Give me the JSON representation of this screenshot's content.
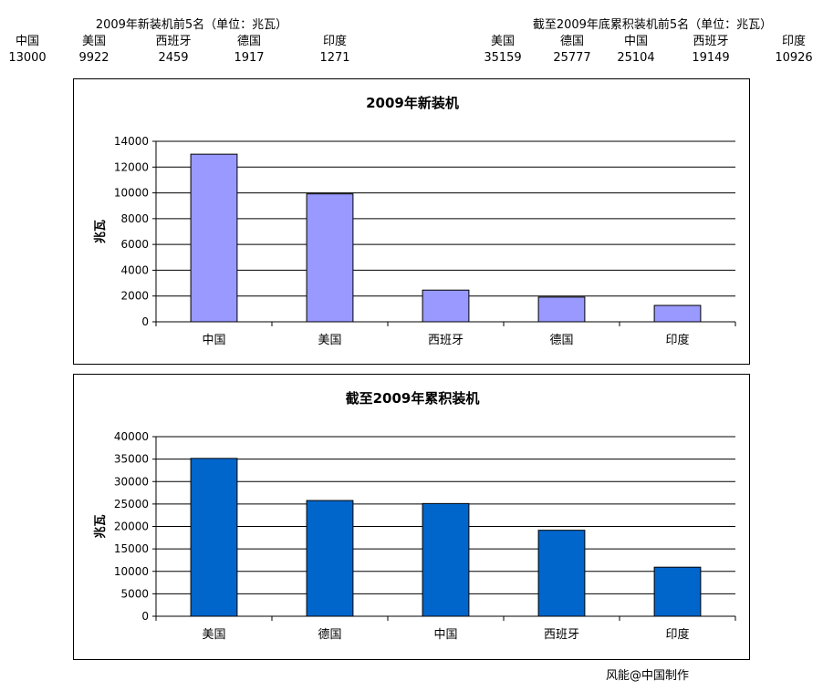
{
  "tables": [
    {
      "title": "2009年新装机前5名（单位：兆瓦）",
      "headers": [
        "中国",
        "美国",
        "西班牙",
        "德国",
        "印度"
      ],
      "values": [
        "13000",
        "9922",
        "2459",
        "1917",
        "1271"
      ]
    },
    {
      "title": "截至2009年底累积装机前5名（单位：兆瓦）",
      "headers": [
        "美国",
        "德国",
        "中国",
        "西班牙",
        "印度"
      ],
      "values": [
        "35159",
        "25777",
        "25104",
        "19149",
        "10926"
      ]
    }
  ],
  "chart_data": [
    {
      "type": "bar",
      "title": "2009年新装机",
      "ylabel": "兆瓦",
      "xlabel": "",
      "categories": [
        "中国",
        "美国",
        "西班牙",
        "德国",
        "印度"
      ],
      "values": [
        13000,
        9922,
        2459,
        1917,
        1271
      ],
      "ylim": [
        0,
        14000
      ],
      "yticks": [
        0,
        2000,
        4000,
        6000,
        8000,
        10000,
        12000,
        14000
      ],
      "grid": true,
      "bar_color": "#9999ff"
    },
    {
      "type": "bar",
      "title": "截至2009年累积装机",
      "ylabel": "兆瓦",
      "xlabel": "",
      "categories": [
        "美国",
        "德国",
        "中国",
        "西班牙",
        "印度"
      ],
      "values": [
        35159,
        25777,
        25104,
        19149,
        10926
      ],
      "ylim": [
        0,
        40000
      ],
      "yticks": [
        0,
        5000,
        10000,
        15000,
        20000,
        25000,
        30000,
        35000,
        40000
      ],
      "grid": true,
      "bar_color": "#0066cc"
    }
  ],
  "credit": "风能@中国制作"
}
